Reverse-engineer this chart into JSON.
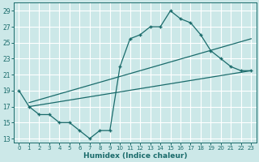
{
  "xlabel": "Humidex (Indice chaleur)",
  "bg_color": "#cce8e8",
  "grid_color": "#aacccc",
  "line_color": "#1a6b6b",
  "xlim": [
    -0.5,
    23.5
  ],
  "ylim": [
    12.5,
    30
  ],
  "xticks": [
    0,
    1,
    2,
    3,
    4,
    5,
    6,
    7,
    8,
    9,
    10,
    11,
    12,
    13,
    14,
    15,
    16,
    17,
    18,
    19,
    20,
    21,
    22,
    23
  ],
  "yticks": [
    13,
    15,
    17,
    19,
    21,
    23,
    25,
    27,
    29
  ],
  "curve1_x": [
    0,
    1,
    2,
    3,
    4,
    5,
    6,
    7,
    8,
    9,
    10,
    11,
    12,
    13,
    14,
    15,
    16,
    17,
    18,
    19,
    20,
    21,
    22,
    23
  ],
  "curve1_y": [
    19,
    17,
    16,
    16,
    15,
    15,
    14,
    13,
    14,
    14,
    22,
    25.5,
    26,
    27,
    27,
    29,
    28,
    27.5,
    26,
    24,
    23,
    22,
    21.5,
    21.5
  ],
  "line2_x": [
    1,
    23
  ],
  "line2_y": [
    17.5,
    25.5
  ],
  "line3_x": [
    1,
    23
  ],
  "line3_y": [
    17,
    21.5
  ]
}
